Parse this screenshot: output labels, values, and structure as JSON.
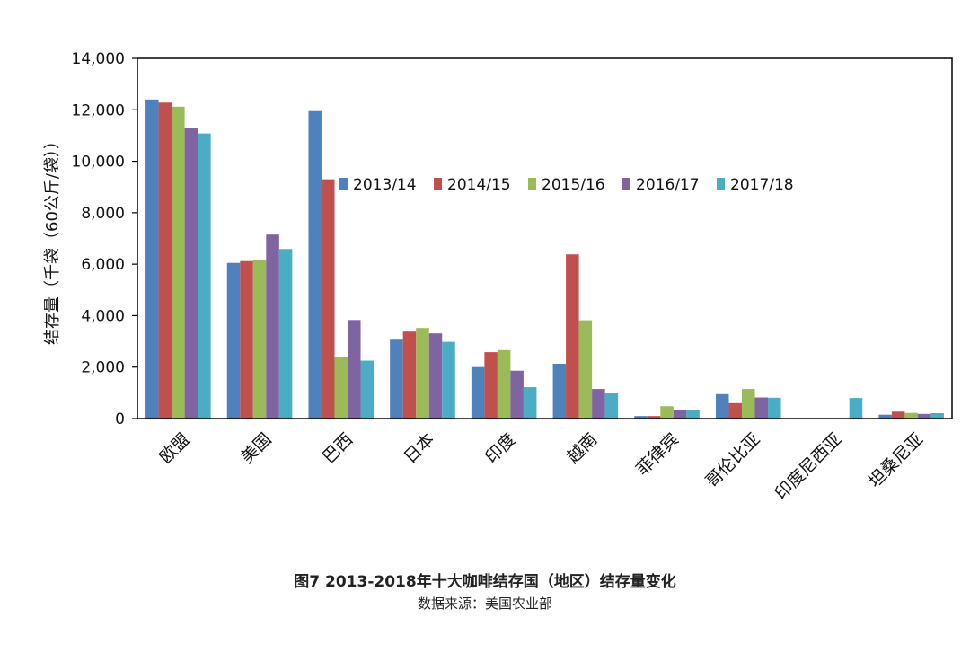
{
  "chart_data": {
    "type": "bar",
    "title": "图7 2013-2018年十大咖啡结存国（地区）结存量变化",
    "subtitle": "数据来源：美国农业部",
    "xlabel": "",
    "ylabel": "结存量（千袋（60公斤/袋））",
    "ylim": [
      0,
      14000
    ],
    "yticks": [
      0,
      2000,
      4000,
      6000,
      8000,
      10000,
      12000,
      14000
    ],
    "ytick_labels": [
      "0",
      "2,000",
      "4,000",
      "6,000",
      "8,000",
      "10,000",
      "12,000",
      "14,000"
    ],
    "grid": false,
    "legend_position": "upper-center-inside",
    "categories": [
      "欧盟",
      "美国",
      "巴西",
      "日本",
      "印度",
      "越南",
      "菲律宾",
      "哥伦比亚",
      "印度尼西亚",
      "坦桑尼亚"
    ],
    "series": [
      {
        "name": "2013/14",
        "color": "#4F81BD",
        "values": [
          12400,
          6050,
          11950,
          3100,
          2000,
          2130,
          100,
          950,
          0,
          150
        ]
      },
      {
        "name": "2014/15",
        "color": "#C0504D",
        "values": [
          12280,
          6120,
          9300,
          3380,
          2580,
          6380,
          100,
          600,
          0,
          270
        ]
      },
      {
        "name": "2015/16",
        "color": "#9BBB59",
        "values": [
          12120,
          6180,
          2390,
          3520,
          2660,
          3820,
          480,
          1150,
          0,
          220
        ]
      },
      {
        "name": "2016/17",
        "color": "#8064A2",
        "values": [
          11280,
          7150,
          3830,
          3310,
          1860,
          1150,
          350,
          820,
          0,
          180
        ]
      },
      {
        "name": "2017/18",
        "color": "#4BACC6",
        "values": [
          11080,
          6590,
          2250,
          2980,
          1220,
          1010,
          340,
          810,
          800,
          210
        ]
      }
    ]
  }
}
